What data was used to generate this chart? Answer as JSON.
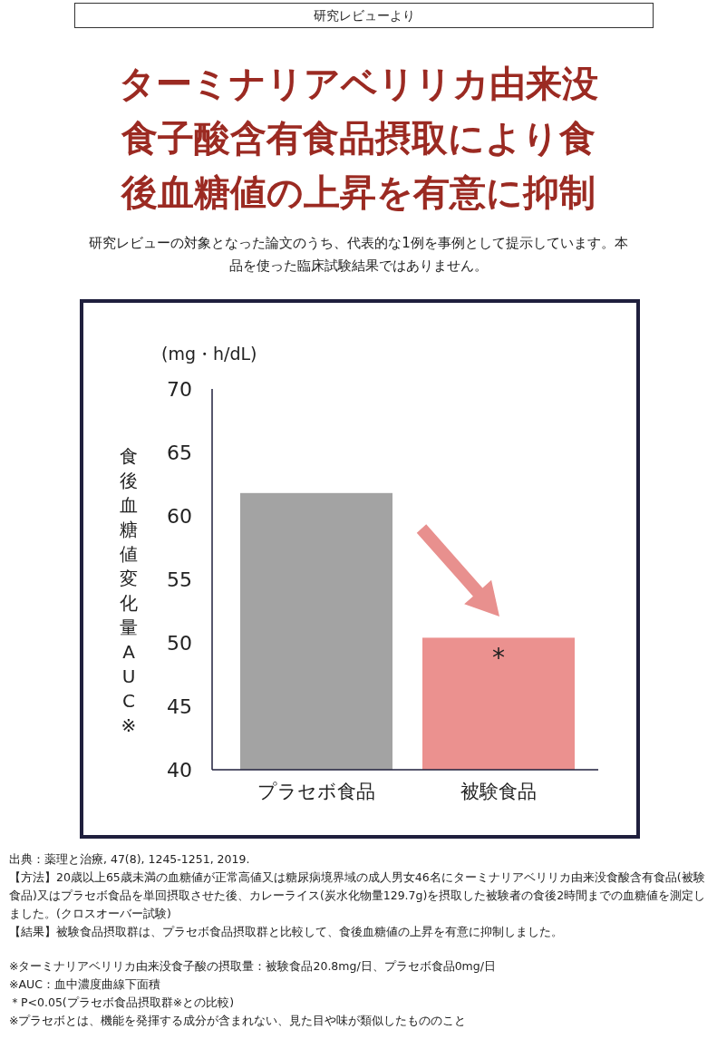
{
  "chart_data": {
    "type": "bar",
    "title": "ターミナリアベリリカ由来没食子酸含有食品摂取により食後血糖値の上昇を有意に抑制",
    "subtitle": "研究レビューの対象となった論文のうち、代表的な1例を事例として提示しています。本品を使った臨床試験結果ではありません。",
    "xlabel": "(mg・h/dL)",
    "ylabel": "食後血糖値変化量AUC※",
    "categories": [
      "プラセボ食品",
      "被験食品"
    ],
    "values": [
      61.8,
      50.4
    ],
    "colors": [
      "#a3a3a3",
      "#eb918f"
    ],
    "ylim": [
      40,
      70
    ],
    "yticks": [
      40,
      45,
      50,
      55,
      60,
      65,
      70
    ],
    "grid": false,
    "legend": false,
    "annotations": [
      "研究レビューより",
      {
        "text": "*",
        "x": "被験食品",
        "y": 50.4
      },
      "出典：薬理と治療, 47(8), 1245-1251, 2019.",
      "【方法】20歳以上65歳未満の血糖値が正常高値又は糖尿病境界域の成人男女46名にターミナリアベリリカ由来没食酸含有食品(被験食品)又はプラセボ食品を単回摂取させた後、カレーライス(炭水化物量129.7g)を摂取した被験者の食後2時間までの血糖値を測定しました。(クロスオーバー試験)",
      "【結果】被験食品摂取群は、プラセボ食品摂取群と比較して、食後血糖値の上昇を有意に抑制しました。",
      "※ターミナリアベリリカ由来没食子酸の摂取量：被験食品20.8mg/日、プラセボ食品0mg/日",
      "※AUC：血中濃度曲線下面積",
      "＊P<0.05(プラセボ食品摂取群※との比較)",
      "※プラセボとは、機能を発揮する成分が含まれない、見た目や味が類似したもののこと"
    ]
  }
}
